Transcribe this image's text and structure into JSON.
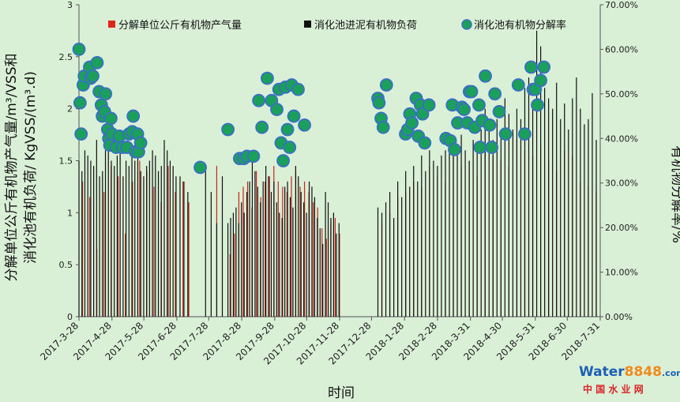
{
  "chart_data": {
    "type": "bar-scatter",
    "xlabel": "时间",
    "ylabel_left_line1": "分解单位公斤有机物产气量/m³/VSS和",
    "ylabel_left_line2": "消化池有机负荷/ KgVSS/(m³.d)",
    "ylabel_right": "有机物分解率/%",
    "ylim_left": [
      0,
      3
    ],
    "ylim_right": [
      0,
      70
    ],
    "yticks_left": [
      "0",
      "0.5",
      "1",
      "1.5",
      "2",
      "2.5",
      "3"
    ],
    "yticks_right": [
      "0.00%",
      "10.00%",
      "20.00%",
      "30.00%",
      "40.00%",
      "50.00%",
      "60.00%",
      "70.00%"
    ],
    "x_start": "2017-03-28",
    "x_end": "2018-07-31",
    "x_ticks": [
      "2017-3-28",
      "2017-4-28",
      "2017-5-28",
      "2017-6-28",
      "2017-7-28",
      "2017-8-28",
      "2017-9-28",
      "2017-10-28",
      "2017-11-28",
      "2017-12-28",
      "2018-1-28",
      "2018-2-28",
      "2018-3-31",
      "2018-4-30",
      "2018-5-31",
      "2018-6-30",
      "2018-7-31"
    ],
    "legend": [
      {
        "name": "分解单位公斤有机物产气量",
        "color": "#e0251b",
        "marker": "square"
      },
      {
        "name": "消化池进泥有机物负荷",
        "color": "#111111",
        "marker": "square"
      },
      {
        "name": "消化池有机物分解率",
        "color": "#1aa05a",
        "marker": "circle"
      }
    ],
    "legend_position": "top",
    "segments": [
      {
        "start": "2017-03-28",
        "end": "2017-06-30",
        "gas": [
          1.3,
          1.15,
          0.65,
          1.2,
          1.45,
          1.35,
          0.8,
          1.3,
          1.5,
          1.4,
          1.25,
          1.1,
          1.45,
          1.2
        ],
        "load": [
          1.5,
          1.4,
          1.6,
          1.55,
          1.5,
          1.45,
          1.7,
          1.35,
          1.4,
          1.6,
          1.95,
          1.5,
          1.45,
          1.55,
          1.6,
          1.35,
          1.5,
          1.45,
          1.55,
          1.5,
          1.6,
          1.4,
          1.35,
          1.45,
          1.5,
          1.6,
          1.55,
          1.4,
          1.45,
          1.7,
          1.6,
          1.5,
          1.45,
          1.35
        ]
      },
      {
        "start": "2017-07-01",
        "end": "2017-07-12",
        "gas": [
          1.3,
          1.1
        ],
        "load": [
          1.35,
          1.3,
          1.2
        ]
      },
      {
        "start": "2017-07-25",
        "end": "2017-08-15",
        "gas": [
          1.45
        ],
        "load": [
          1.45,
          1.2,
          0.9,
          1.35
        ]
      },
      {
        "start": "2017-08-15",
        "end": "2017-11-30",
        "gas": [
          0.6,
          0.8,
          1.2,
          1.25,
          1.3,
          1.05,
          1.4,
          1.15,
          1.3,
          1.35,
          1.45,
          1.3,
          1.25,
          1.2,
          1.35,
          1.4,
          1.25,
          1.3,
          1.2,
          1.1,
          1.05,
          0.85,
          0.75,
          0.9,
          0.95,
          0.8
        ],
        "load": [
          0.9,
          0.95,
          1.0,
          1.05,
          0.9,
          1.1,
          1.0,
          1.2,
          1.3,
          1.5,
          1.4,
          1.25,
          1.1,
          1.3,
          1.45,
          1.35,
          1.2,
          1.3,
          1.1,
          1.0,
          0.95,
          1.25,
          1.3,
          1.15,
          1.05,
          1.45,
          1.35,
          1.2,
          1.1,
          1.0,
          1.3,
          1.25,
          1.15,
          0.95,
          0.85,
          0.7,
          1.2,
          1.1,
          0.95,
          1.0,
          0.8,
          0.9
        ]
      },
      {
        "start": "2018-01-03",
        "end": "2018-07-31",
        "gas": [
          0.9,
          1.0,
          1.15,
          1.2,
          1.3,
          1.25,
          1.45,
          1.35,
          1.3,
          1.55,
          1.45,
          1.5,
          1.35,
          1.6,
          1.55,
          1.5,
          1.45,
          1.7,
          1.6,
          1.55,
          1.65,
          1.5,
          1.4,
          1.6,
          1.55,
          1.3,
          1.25,
          1.2
        ],
        "load": [
          1.05,
          1.0,
          1.1,
          1.2,
          0.95,
          1.3,
          1.15,
          1.4,
          1.25,
          1.45,
          1.3,
          1.55,
          1.4,
          1.6,
          1.5,
          1.45,
          1.55,
          1.6,
          1.7,
          1.65,
          1.55,
          1.75,
          1.6,
          1.5,
          1.7,
          1.65,
          1.8,
          2.0,
          1.85,
          1.7,
          1.9,
          1.75,
          2.1,
          1.95,
          1.8,
          2.0,
          1.9,
          2.2,
          2.3,
          2.0,
          2.75,
          2.6,
          2.2,
          2.1,
          2.0,
          2.25,
          1.9,
          2.05,
          1.8,
          2.1,
          2.3,
          2.0,
          1.85,
          1.9,
          2.15,
          1.7
        ]
      }
    ],
    "decomposition_rate_points": [
      [
        "2017-03-28",
        60
      ],
      [
        "2017-03-29",
        48
      ],
      [
        "2017-03-30",
        41
      ],
      [
        "2017-04-01",
        52
      ],
      [
        "2017-04-02",
        54
      ],
      [
        "2017-04-07",
        56
      ],
      [
        "2017-04-08",
        53.5
      ],
      [
        "2017-04-10",
        54
      ],
      [
        "2017-04-14",
        57
      ],
      [
        "2017-04-16",
        50.5
      ],
      [
        "2017-04-18",
        47.5
      ],
      [
        "2017-04-19",
        45
      ],
      [
        "2017-04-21",
        46
      ],
      [
        "2017-04-22",
        50
      ],
      [
        "2017-04-24",
        42
      ],
      [
        "2017-04-25",
        40
      ],
      [
        "2017-04-26",
        38.5
      ],
      [
        "2017-04-27",
        44.5
      ],
      [
        "2017-04-28",
        41
      ],
      [
        "2017-05-02",
        38
      ],
      [
        "2017-05-05",
        40.5
      ],
      [
        "2017-05-08",
        38
      ],
      [
        "2017-05-12",
        38
      ],
      [
        "2017-05-14",
        41
      ],
      [
        "2017-05-17",
        41.5
      ],
      [
        "2017-05-18",
        45
      ],
      [
        "2017-05-20",
        37
      ],
      [
        "2017-05-22",
        41
      ],
      [
        "2017-05-23",
        37
      ],
      [
        "2017-05-25",
        39
      ],
      [
        "2017-07-20",
        33.5
      ],
      [
        "2017-08-15",
        42
      ],
      [
        "2017-08-26",
        35.5
      ],
      [
        "2017-08-30",
        35.5
      ],
      [
        "2017-09-02",
        36
      ],
      [
        "2017-09-08",
        36
      ],
      [
        "2017-09-13",
        48.5
      ],
      [
        "2017-09-16",
        42.5
      ],
      [
        "2017-09-21",
        53.5
      ],
      [
        "2017-09-25",
        48.5
      ],
      [
        "2017-09-30",
        46.5
      ],
      [
        "2017-10-02",
        51
      ],
      [
        "2017-10-04",
        39
      ],
      [
        "2017-10-06",
        35
      ],
      [
        "2017-10-08",
        51.5
      ],
      [
        "2017-10-10",
        42
      ],
      [
        "2017-10-12",
        38
      ],
      [
        "2017-10-14",
        52
      ],
      [
        "2017-10-16",
        45
      ],
      [
        "2017-10-20",
        51
      ],
      [
        "2017-10-26",
        43
      ],
      [
        "2018-01-03",
        49
      ],
      [
        "2018-01-04",
        48
      ],
      [
        "2018-01-06",
        44.5
      ],
      [
        "2018-01-08",
        42.5
      ],
      [
        "2018-01-11",
        52
      ],
      [
        "2018-01-29",
        41
      ],
      [
        "2018-01-31",
        42
      ],
      [
        "2018-02-02",
        45.5
      ],
      [
        "2018-02-04",
        43.5
      ],
      [
        "2018-02-08",
        49
      ],
      [
        "2018-02-10",
        40.5
      ],
      [
        "2018-02-12",
        47.5
      ],
      [
        "2018-02-14",
        45.5
      ],
      [
        "2018-02-16",
        39
      ],
      [
        "2018-02-20",
        47.5
      ],
      [
        "2018-03-08",
        40
      ],
      [
        "2018-03-12",
        39.5
      ],
      [
        "2018-03-14",
        47.5
      ],
      [
        "2018-03-16",
        37.5
      ],
      [
        "2018-03-19",
        43.5
      ],
      [
        "2018-03-23",
        47
      ],
      [
        "2018-03-25",
        46.5
      ],
      [
        "2018-03-28",
        43.5
      ],
      [
        "2018-03-30",
        50.5
      ],
      [
        "2018-04-01",
        50.5
      ],
      [
        "2018-04-04",
        42.5
      ],
      [
        "2018-04-08",
        47.5
      ],
      [
        "2018-04-09",
        38
      ],
      [
        "2018-04-11",
        44
      ],
      [
        "2018-04-14",
        54
      ],
      [
        "2018-04-18",
        43
      ],
      [
        "2018-04-20",
        38
      ],
      [
        "2018-04-23",
        50
      ],
      [
        "2018-04-27",
        46
      ],
      [
        "2018-05-03",
        41
      ],
      [
        "2018-05-15",
        52
      ],
      [
        "2018-05-21",
        41
      ],
      [
        "2018-05-27",
        56
      ],
      [
        "2018-05-29",
        51
      ],
      [
        "2018-05-31",
        51
      ],
      [
        "2018-06-02",
        47.5
      ],
      [
        "2018-06-05",
        53
      ],
      [
        "2018-06-08",
        56
      ]
    ]
  },
  "watermark": {
    "brand_part1": "Water",
    "brand_part2": "8848",
    "brand_suffix": ".com",
    "cn_text": "中 国 水 业 网",
    "color_blue": "#1c5fb5",
    "color_orange": "#f08a1c",
    "color_red": "#d8262a"
  }
}
